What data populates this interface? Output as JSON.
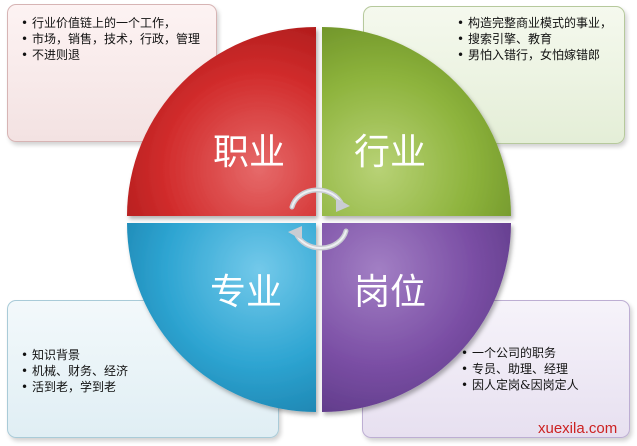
{
  "quadrants": {
    "top_left": {
      "label": "职业",
      "color": "#d42a2a"
    },
    "top_right": {
      "label": "行业",
      "color": "#8fb43a"
    },
    "bottom_left": {
      "label": "专业",
      "color": "#2fa6d3"
    },
    "bottom_right": {
      "label": "岗位",
      "color": "#7a4ea3"
    }
  },
  "boxes": {
    "top_left": [
      "行业价值链上的一个工作，",
      "市场，销售，技术，行政，管理",
      "不进则退"
    ],
    "top_right": [
      "构造完整商业模式的事业，",
      "搜索引擎、教育",
      "男怕入错行，女怕嫁错郎"
    ],
    "bottom_left": [
      "知识背景",
      "机械、财务、经济",
      "活到老，学到老"
    ],
    "bottom_right": [
      "一个公司的职务",
      "专员、助理、经理",
      "因人定岗&因岗定人"
    ]
  },
  "watermark": "xuexila.com"
}
